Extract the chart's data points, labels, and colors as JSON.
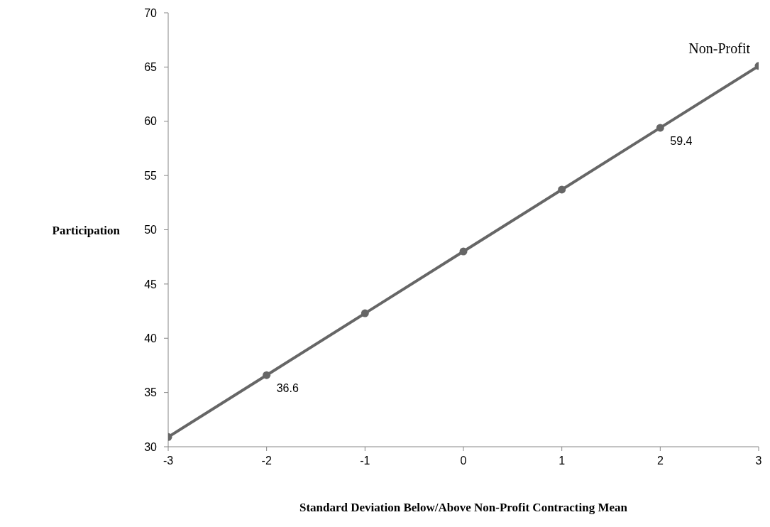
{
  "chart_data": {
    "type": "line",
    "xlabel": "Standard Deviation Below/Above Non-Profit  Contracting Mean",
    "ylabel": "Participation",
    "x": [
      -3,
      -2,
      -1,
      0,
      1,
      2,
      3
    ],
    "series": [
      {
        "name": "Non-Profit",
        "color": "#666666",
        "values": [
          30.9,
          36.6,
          42.3,
          48.0,
          53.7,
          59.4,
          65.1
        ],
        "value_labels": [
          null,
          "36.6",
          null,
          null,
          null,
          "59.4",
          null
        ]
      }
    ],
    "xlim": [
      -3,
      3
    ],
    "xticks": [
      -3,
      -2,
      -1,
      0,
      1,
      2,
      3
    ],
    "ylim": [
      30,
      70
    ],
    "yticks": [
      30,
      35,
      40,
      45,
      50,
      55,
      60,
      65,
      70
    ],
    "grid": false,
    "legend": false,
    "marker": "circle",
    "line_style": "solid"
  }
}
